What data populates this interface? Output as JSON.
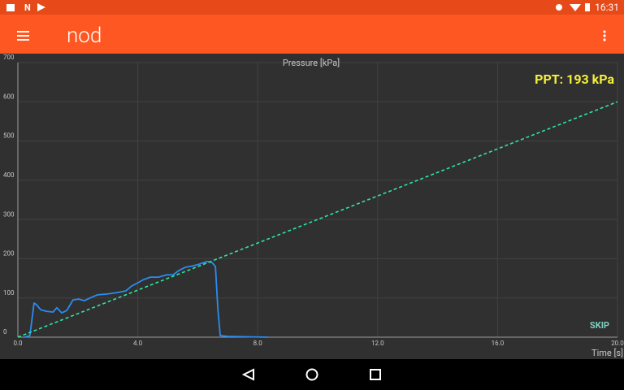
{
  "status_bar": {
    "time": "16:31"
  },
  "app_bar": {
    "title": "nod"
  },
  "skip_button": {
    "label": "SKIP"
  },
  "chart_data": {
    "type": "line",
    "title": "Pressure [kPa]",
    "x_label": "Time [s]",
    "annotation": "PPT: 193 kPa",
    "xlim": [
      0,
      20
    ],
    "ylim": [
      0,
      700
    ],
    "xticks": [
      {
        "value": 0,
        "label": "0.0"
      },
      {
        "value": 4,
        "label": "4.0"
      },
      {
        "value": 8,
        "label": "8.0"
      },
      {
        "value": 12,
        "label": "12.0"
      },
      {
        "value": 16,
        "label": "16.0"
      },
      {
        "value": 20,
        "label": "20.0"
      }
    ],
    "yticks": [
      0,
      100,
      200,
      300,
      400,
      500,
      600,
      700
    ],
    "grid": true,
    "series": [
      {
        "color": "#2a8cf0",
        "dashed": false,
        "x": [
          0.22,
          0.4,
          0.54,
          0.62,
          0.76,
          0.95,
          1.17,
          1.3,
          1.46,
          1.63,
          1.84,
          2.03,
          2.22,
          2.44,
          2.66,
          2.98,
          3.33,
          3.6,
          3.79,
          4.01,
          4.2,
          4.42,
          4.69,
          4.96,
          5.18,
          5.37,
          5.58,
          5.85,
          6.04,
          6.31,
          6.48,
          6.59,
          6.67,
          6.75,
          6.99,
          8.35
        ],
        "values": [
          0,
          4,
          87,
          83,
          70,
          66,
          64,
          75,
          62,
          68,
          95,
          97,
          93,
          101,
          108,
          110,
          114,
          118,
          130,
          139,
          147,
          153,
          153,
          159,
          159,
          170,
          178,
          182,
          186,
          193,
          190,
          180,
          72,
          4,
          2,
          0
        ]
      },
      {
        "color": "#2ee6a0",
        "dashed": true,
        "x": [
          0,
          20
        ],
        "values": [
          0,
          600
        ]
      }
    ]
  }
}
